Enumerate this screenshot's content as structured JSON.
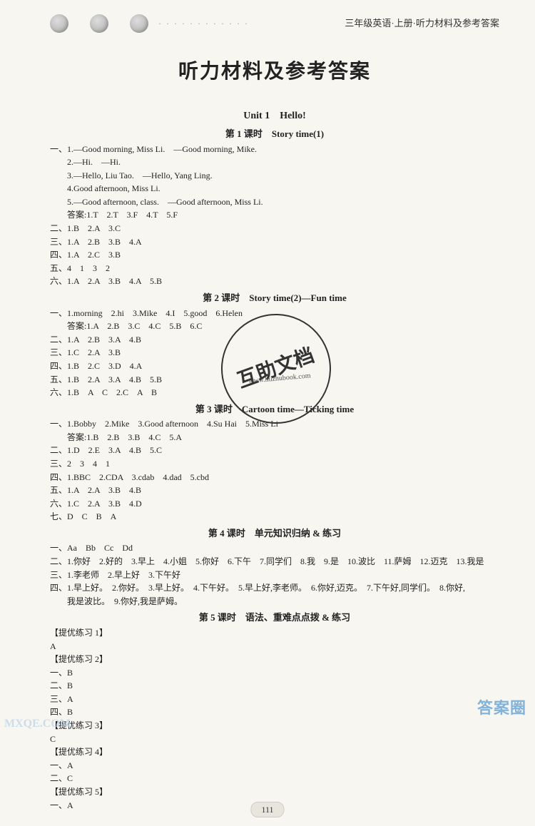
{
  "colors": {
    "background": "#f8f6f1",
    "text": "#222",
    "header_text": "#333",
    "watermark_border": "#333",
    "stamp_blue": "#6fa8d6",
    "stamp_light": "#b7d3e8"
  },
  "fonts": {
    "body_size": 12,
    "title_size": 28,
    "unit_size": 14,
    "lesson_size": 13
  },
  "header": {
    "right_text": "三年级英语·上册·听力材料及参考答案"
  },
  "main_title": "听力材料及参考答案",
  "unit1": {
    "title": "Unit 1　Hello!",
    "lesson1": {
      "title": "第 1 课时　Story time(1)",
      "lines": [
        "一、1.—Good morning, Miss Li.　—Good morning, Mike.",
        "　　2.—Hi.　—Hi.",
        "　　3.—Hello, Liu Tao.　—Hello, Yang Ling.",
        "　　4.Good afternoon, Miss Li.",
        "　　5.—Good afternoon, class.　—Good afternoon, Miss Li.",
        "　　答案:1.T　2.T　3.F　4.T　5.F",
        "二、1.B　2.A　3.C",
        "三、1.A　2.B　3.B　4.A",
        "四、1.A　2.C　3.B",
        "五、4　1　3　2",
        "六、1.A　2.A　3.B　4.A　5.B"
      ]
    },
    "lesson2": {
      "title": "第 2 课时　Story time(2)—Fun time",
      "lines": [
        "一、1.morning　2.hi　3.Mike　4.I　5.good　6.Helen",
        "　　答案:1.A　2.B　3.C　4.C　5.B　6.C",
        "二、1.A　2.B　3.A　4.B",
        "三、1.C　2.A　3.B",
        "四、1.B　2.C　3.D　4.A",
        "五、1.B　2.A　3.A　4.B　5.B",
        "六、1.B　A　C　2.C　A　B"
      ]
    },
    "lesson3": {
      "title": "第 3 课时　Cartoon time—Ticking time",
      "lines": [
        "一、1.Bobby　2.Mike　3.Good afternoon　4.Su Hai　5.Miss Li",
        "　　答案:1.B　2.B　3.B　4.C　5.A",
        "二、1.D　2.E　3.A　4.B　5.C",
        "三、2　3　4　1",
        "四、1.BBC　2.CDA　3.cdab　4.dad　5.cbd",
        "五、1.A　2.A　3.B　4.B",
        "六、1.C　2.A　3.B　4.D",
        "七、D　C　B　A"
      ]
    },
    "lesson4": {
      "title": "第 4 课时　单元知识归纳 & 练习",
      "lines": [
        "一、Aa　Bb　Cc　Dd",
        "二、1.你好　2.好的　3.早上　4.小姐　5.你好　6.下午　7.同学们　8.我　9.是　10.波比　11.萨姆　12.迈克　13.我是",
        "三、1.李老师　2.早上好　3.下午好",
        "四、1.早上好。　2.你好。　3.早上好。　4.下午好。　5.早上好,李老师。　6.你好,迈克。　7.下午好,同学们。　8.你好,",
        "　　我是波比。　9.你好,我是萨姆。"
      ]
    },
    "lesson5": {
      "title": "第 5 课时　语法、重难点点拨 & 练习",
      "lines": [
        "【提优练习 1】",
        "A",
        "【提优练习 2】",
        "一、B",
        "二、B",
        "三、A",
        "四、B",
        "【提优练习 3】",
        "C",
        "【提优练习 4】",
        "一、A",
        "二、C",
        "【提优练习 5】",
        "一、A"
      ]
    }
  },
  "watermark": {
    "main": "互助文档",
    "sub": "www.huzhubook.com"
  },
  "page_number": "111",
  "stamp_br": "答案圈",
  "stamp_bl": "MXQE.COM"
}
